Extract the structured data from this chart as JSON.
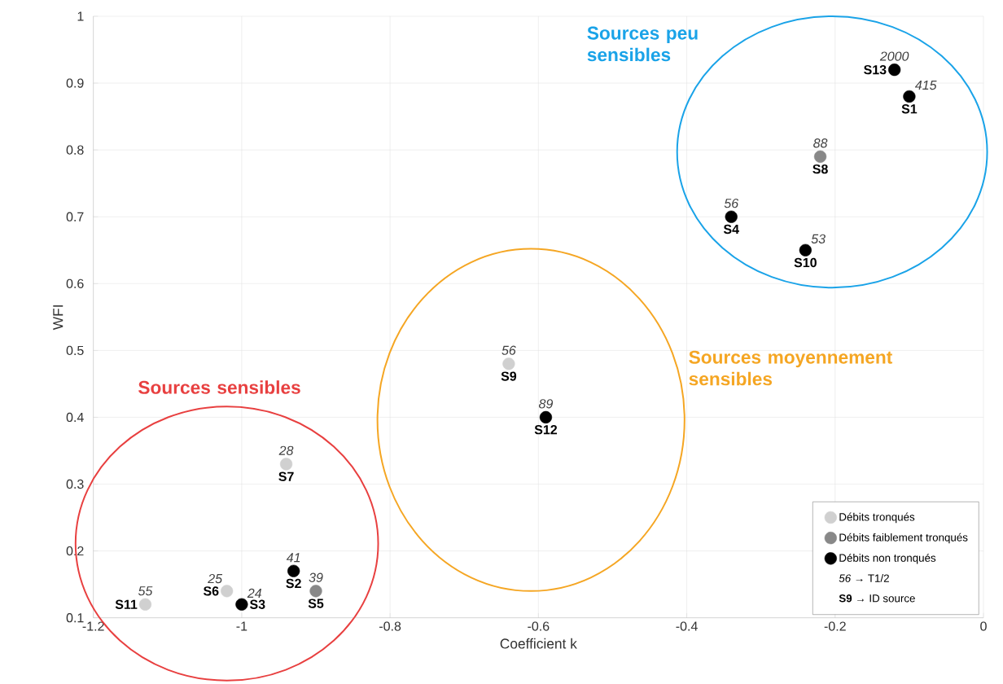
{
  "chart_data": {
    "type": "scatter",
    "xlabel": "Coefficient k",
    "ylabel": "WFI",
    "xlim": [
      -1.2,
      0
    ],
    "ylim": [
      0.1,
      1
    ],
    "xticks": [
      -1.2,
      -1,
      -0.8,
      -0.6,
      -0.4,
      -0.2,
      0
    ],
    "yticks": [
      0.1,
      0.2,
      0.3,
      0.4,
      0.5,
      0.6,
      0.7,
      0.8,
      0.9,
      1
    ],
    "grid": true,
    "legend": "bottom right",
    "marker": "circle",
    "series": [
      {
        "name": "Débits tronqués",
        "color": "#d0d0d0",
        "x": [
          -0.64,
          -0.94,
          -1.02,
          -1.13
        ],
        "values": [
          0.48,
          0.33,
          0.14,
          0.12
        ]
      },
      {
        "name": "Débits faiblement tronqués",
        "color": "#888888",
        "x": [
          -0.22,
          -0.9
        ],
        "values": [
          0.79,
          0.14
        ]
      },
      {
        "name": "Débits non tronqués",
        "color": "#000000",
        "x": [
          -0.12,
          -0.1,
          -0.34,
          -0.24,
          -0.59,
          -0.93,
          -1.0
        ],
        "values": [
          0.92,
          0.88,
          0.7,
          0.65,
          0.4,
          0.17,
          0.12
        ]
      }
    ],
    "annotations": [
      "Sources peu sensibles",
      "Sources moyennement sensibles",
      "Sources sensibles",
      "*56* → T1/2",
      "**S9** → ID source",
      {
        "text": "S13",
        "x": -0.12,
        "y": 0.92
      },
      {
        "text": "2000",
        "x": -0.12,
        "y": 0.92
      },
      {
        "text": "S1",
        "x": -0.1,
        "y": 0.88
      },
      {
        "text": "415",
        "x": -0.1,
        "y": 0.88
      },
      {
        "text": "S8",
        "x": -0.22,
        "y": 0.79
      },
      {
        "text": "88",
        "x": -0.22,
        "y": 0.79
      },
      {
        "text": "S4",
        "x": -0.34,
        "y": 0.7
      },
      {
        "text": "56",
        "x": -0.34,
        "y": 0.7
      },
      {
        "text": "S10",
        "x": -0.24,
        "y": 0.65
      },
      {
        "text": "53",
        "x": -0.24,
        "y": 0.65
      },
      {
        "text": "S9",
        "x": -0.64,
        "y": 0.48
      },
      {
        "text": "56",
        "x": -0.64,
        "y": 0.48
      },
      {
        "text": "S12",
        "x": -0.59,
        "y": 0.4
      },
      {
        "text": "89",
        "x": -0.59,
        "y": 0.4
      },
      {
        "text": "S7",
        "x": -0.94,
        "y": 0.33
      },
      {
        "text": "28",
        "x": -0.94,
        "y": 0.33
      },
      {
        "text": "S2",
        "x": -0.93,
        "y": 0.17
      },
      {
        "text": "41",
        "x": -0.93,
        "y": 0.17
      },
      {
        "text": "S5",
        "x": -0.9,
        "y": 0.14
      },
      {
        "text": "39",
        "x": -0.9,
        "y": 0.14
      },
      {
        "text": "S6",
        "x": -1.02,
        "y": 0.14
      },
      {
        "text": "25",
        "x": -1.02,
        "y": 0.14
      },
      {
        "text": "S3",
        "x": -1.0,
        "y": 0.12
      },
      {
        "text": "24",
        "x": -1.0,
        "y": 0.12
      },
      {
        "text": "S11",
        "x": -1.13,
        "y": 0.12
      },
      {
        "text": "55",
        "x": -1.13,
        "y": 0.12
      }
    ]
  }
}
